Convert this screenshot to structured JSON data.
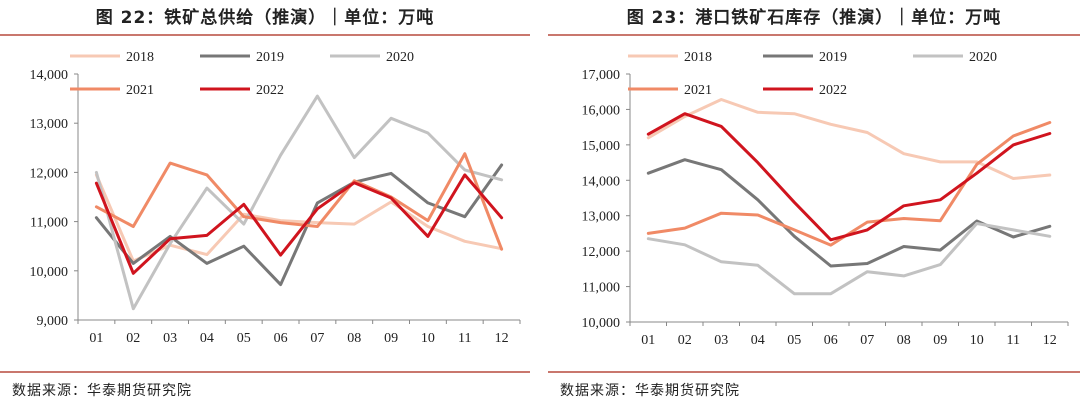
{
  "charts": [
    {
      "title": "图 22：铁矿总供给（推演）｜单位：万吨",
      "source": "数据来源：华泰期货研究院",
      "chart_data": {
        "type": "line",
        "categories": [
          "01",
          "02",
          "03",
          "04",
          "05",
          "06",
          "07",
          "08",
          "09",
          "10",
          "11",
          "12"
        ],
        "ylim": [
          9000,
          14000
        ],
        "yticks": [
          9000,
          10000,
          11000,
          12000,
          13000,
          14000
        ],
        "ytick_labels": [
          "9,000",
          "10,000",
          "11,000",
          "12,000",
          "13,000",
          "14,000"
        ],
        "grid": false,
        "legend_position": "top",
        "series": [
          {
            "name": "2018",
            "color": "#f7c9b4",
            "values": [
              11950,
              10200,
              10520,
              10330,
              11150,
              11020,
              10980,
              10950,
              11400,
              10900,
              10600,
              10450
            ]
          },
          {
            "name": "2019",
            "color": "#777777",
            "values": [
              11080,
              10150,
              10700,
              10150,
              10500,
              9720,
              11380,
              11800,
              11980,
              11380,
              11100,
              12150
            ]
          },
          {
            "name": "2020",
            "color": "#c2c2c2",
            "values": [
              12000,
              9230,
              10550,
              11680,
              10950,
              12350,
              13550,
              12300,
              13100,
              12800,
              12050,
              11850
            ]
          },
          {
            "name": "2021",
            "color": "#f08a66",
            "values": [
              11300,
              10900,
              12190,
              11950,
              11100,
              10980,
              10900,
              11830,
              11500,
              11020,
              12380,
              10440
            ]
          },
          {
            "name": "2022",
            "color": "#d0141e",
            "values": [
              11780,
              9950,
              10650,
              10720,
              11350,
              10320,
              11260,
              11790,
              11480,
              10700,
              11950,
              11080
            ]
          }
        ]
      }
    },
    {
      "title": "图 23：港口铁矿石库存（推演）｜单位：万吨",
      "source": "数据来源：华泰期货研究院",
      "chart_data": {
        "type": "line",
        "categories": [
          "01",
          "02",
          "03",
          "04",
          "05",
          "06",
          "07",
          "08",
          "09",
          "10",
          "11",
          "12"
        ],
        "ylim": [
          10000,
          17000
        ],
        "yticks": [
          10000,
          11000,
          12000,
          13000,
          14000,
          15000,
          16000,
          17000
        ],
        "ytick_labels": [
          "10,000",
          "11,000",
          "12,000",
          "13,000",
          "14,000",
          "15,000",
          "16,000",
          "17,000"
        ],
        "grid": false,
        "legend_position": "top",
        "series": [
          {
            "name": "2018",
            "color": "#f7c9b4",
            "values": [
              15200,
              15800,
              16280,
              15920,
              15880,
              15580,
              15350,
              14750,
              14520,
              14520,
              14050,
              14150
            ]
          },
          {
            "name": "2019",
            "color": "#777777",
            "values": [
              14200,
              14580,
              14300,
              13450,
              12420,
              11580,
              11650,
              12130,
              12030,
              12850,
              12400,
              12700
            ]
          },
          {
            "name": "2020",
            "color": "#c2c2c2",
            "values": [
              12350,
              12180,
              11700,
              11600,
              10800,
              10800,
              11420,
              11300,
              11620,
              12780,
              12600,
              12420
            ]
          },
          {
            "name": "2021",
            "color": "#f08a66",
            "values": [
              12500,
              12650,
              13070,
              13020,
              12600,
              12170,
              12820,
              12920,
              12860,
              14450,
              15250,
              15630
            ]
          },
          {
            "name": "2022",
            "color": "#d0141e",
            "values": [
              15300,
              15880,
              15520,
              14500,
              13380,
              12320,
              12600,
              13280,
              13450,
              14200,
              15000,
              15320
            ]
          }
        ]
      }
    }
  ]
}
